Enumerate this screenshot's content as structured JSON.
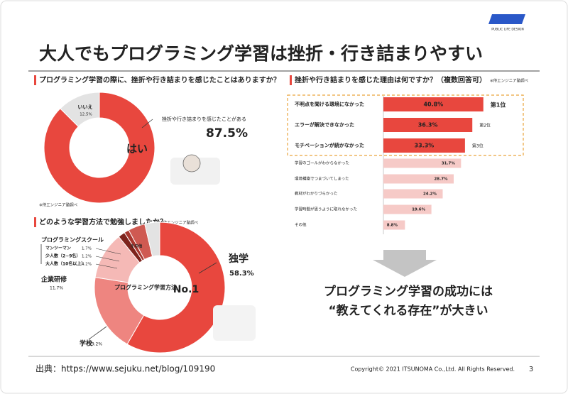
{
  "slide": {
    "title": "大人でもプログラミング学習は挫折・行き詰まりやすい",
    "logo_caption": "PUBLIC LIFE DESIGN",
    "conclusion": [
      "プログラミング学習の成功には",
      "“教えてくれる存在”が大きい"
    ],
    "source": "出典：https://www.sejuku.net/blog/109190",
    "copyright": "Copyright© 2021 ITSUNOMA Co.,Ltd.  All Rights Reserved.",
    "page": 3
  },
  "chart_data": [
    {
      "type": "donut",
      "title": "プログラミング学習の際に、挫折や行き詰まりを感じたことはありますか？",
      "note": "※侍エンジニア塾調べ",
      "annotation": "挫折や行き詰まりを感じたことがある",
      "categories": [
        "はい",
        "いいえ"
      ],
      "values": [
        87.5,
        12.5
      ],
      "value_labels": [
        "87.5%",
        "12.5%"
      ],
      "colors": [
        "#e8473e",
        "#e3e3e3"
      ]
    },
    {
      "type": "donut",
      "title": "どのような学習方法で勉強しましたか？",
      "note": "※侍エンジニア塾調べ",
      "center_label": "プログラミング学習方法",
      "highlight": "No.1",
      "group_label": "プログラミングスクール",
      "categories": [
        "独学",
        "学校",
        "企業研修",
        "マンツーマン",
        "少人数（2~9名）",
        "大人数（10名以上）",
        "その他"
      ],
      "values": [
        58.3,
        19.2,
        11.7,
        1.7,
        1.2,
        4.2,
        3.7
      ],
      "value_labels": [
        "58.3%",
        "19.2%",
        "11.7%",
        "1.7%",
        "1.2%",
        "4.2%",
        null
      ],
      "colors": [
        "#e8473e",
        "#ee8580",
        "#f5b9b6",
        "#7e241d",
        "#a8362e",
        "#cf5a52",
        "#e3e3e3"
      ]
    },
    {
      "type": "hbar",
      "title": "挫折や行き詰まりを感じた理由は何ですか？（複数回答可）",
      "note": "※侍エンジニア塾調べ",
      "categories": [
        "不明点を聞ける環境になかった",
        "エラーが解決できなかった",
        "モチベーションが続かなかった",
        "学習のゴールがわからなかった",
        "環境構築でつまづいてしまった",
        "教材がわかりづらかった",
        "学習時間が思うように取れなかった",
        "その他"
      ],
      "values": [
        40.8,
        36.3,
        33.3,
        31.7,
        28.7,
        24.2,
        19.6,
        8.8
      ],
      "value_labels": [
        "40.8%",
        "36.3%",
        "33.3%",
        "31.7%",
        "28.7%",
        "24.2%",
        "19.6%",
        "8.8%"
      ],
      "ranks": [
        "第1位",
        "第2位",
        "第3位"
      ],
      "colors": [
        "#e8473e",
        "#e8473e",
        "#e8473e",
        "#f6cac7",
        "#f6cac7",
        "#f6cac7",
        "#f6cac7",
        "#f6cac7"
      ]
    }
  ]
}
